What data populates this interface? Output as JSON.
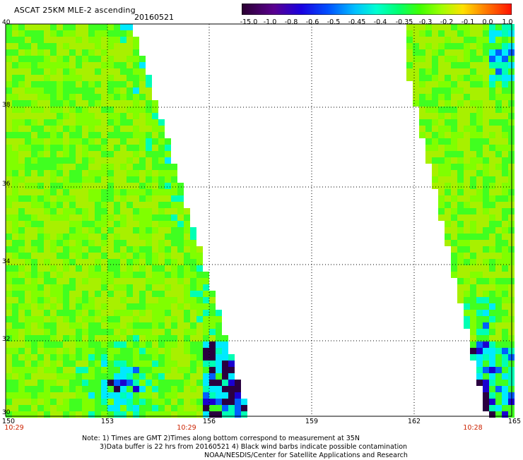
{
  "header": {
    "title": "ASCAT 25KM MLE-2 ascending",
    "date": "20160521"
  },
  "colorbar": {
    "labels": [
      "-15.0",
      "-1.0",
      "-0.8",
      "-0.6",
      "-0.5",
      "-0.45",
      "-0.4",
      "-0.35",
      "-0.3",
      "-0.2",
      "-0.1",
      "0.0",
      "1.0"
    ],
    "colors": [
      "#2a0030",
      "#5a0080",
      "#2200c0",
      "#0010ff",
      "#0090ff",
      "#00e0ff",
      "#00ffb0",
      "#00ff50",
      "#30ff00",
      "#90ff00",
      "#ffe000",
      "#ff7000",
      "#ff1000"
    ]
  },
  "map": {
    "lat_labels": [
      "40",
      "38",
      "36",
      "34",
      "32",
      "30"
    ],
    "lon_labels": [
      "150",
      "153",
      "156",
      "159",
      "162",
      "165"
    ],
    "time_labels": [
      "10:29",
      "10:29",
      "10:28"
    ]
  },
  "footer": {
    "line1": "Note: 1) Times are GMT 2)Times along bottom correspond to measurement at 35N",
    "line2": "3)Data buffer is 22 hrs from 20160521 4) Black wind barbs indicate possible contamination",
    "line3": "NOAA/NESDIS/Center for Satellite Applications and Research"
  }
}
